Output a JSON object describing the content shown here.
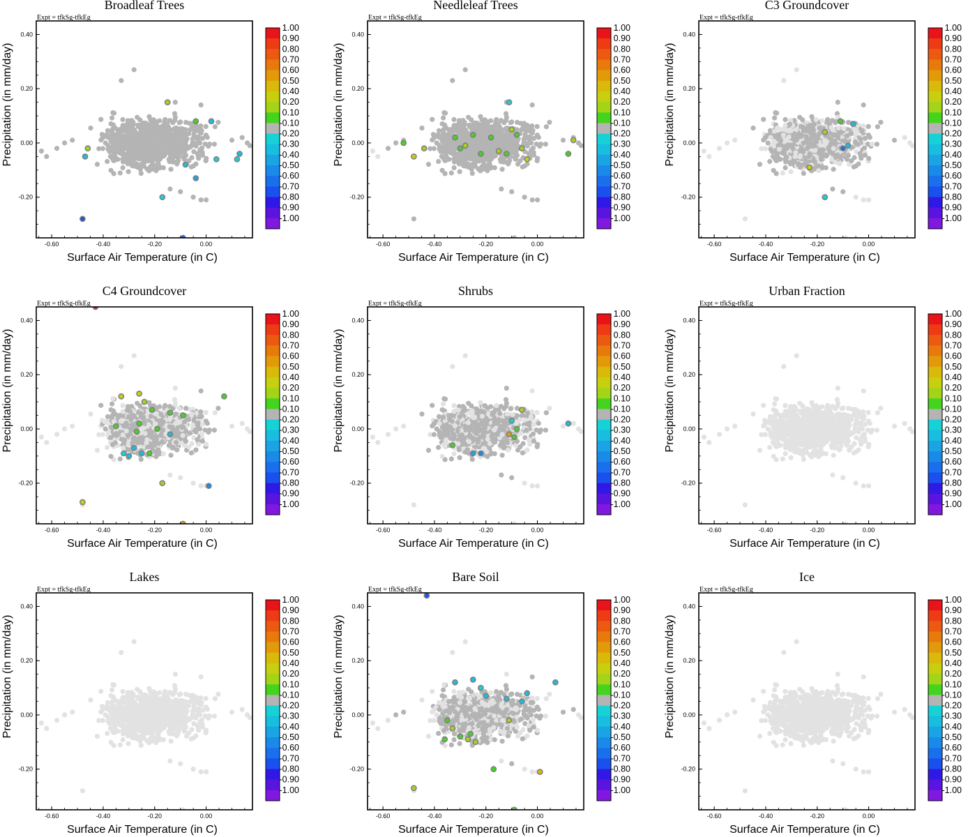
{
  "figure": {
    "expt_label": "Expt = tfkSg-tfkEg",
    "xlabel": "Surface Air Temperature (in C)",
    "ylabel": "Precipitation (in mm/day)"
  },
  "colorbar": {
    "labels": [
      "1.00",
      "0.90",
      "0.80",
      "0.70",
      "0.60",
      "0.50",
      "0.40",
      "0.20",
      "0.10",
      "-0.10",
      "-0.20",
      "-0.30",
      "-0.40",
      "-0.50",
      "-0.60",
      "-0.70",
      "-0.80",
      "-0.90",
      "-1.00"
    ],
    "colors": [
      "#e8141a",
      "#ee3b14",
      "#ec5a12",
      "#e87a0c",
      "#e39a0a",
      "#d9b90a",
      "#c8cf0e",
      "#a4d418",
      "#44d41e",
      "#b4b4b4",
      "#16d2d6",
      "#18bde0",
      "#1aa4e4",
      "#1a8ae8",
      "#1a70ec",
      "#1a50ee",
      "#3018e6",
      "#5a14e0",
      "#8018e0"
    ]
  },
  "chart_data": [
    {
      "type": "scatter",
      "title": "Broadleaf Trees",
      "xlabel": "Surface Air Temperature (in C)",
      "ylabel": "Precipitation (in mm/day)",
      "xlim": [
        -0.66,
        0.18
      ],
      "ylim": [
        -0.35,
        0.45
      ],
      "xticks": [
        "-0.60",
        "-0.40",
        "-0.20",
        "0.00"
      ],
      "yticks": [
        "0.40",
        "0.20",
        "0.00",
        "-0.20"
      ],
      "background_shade": "#b4b4b4",
      "background_extent": [
        -0.66,
        0.18
      ],
      "highlighted_points": [
        {
          "x": -0.47,
          "y": -0.05,
          "v": -0.3
        },
        {
          "x": -0.46,
          "y": -0.02,
          "v": 0.2
        },
        {
          "x": -0.48,
          "y": -0.28,
          "v": -0.7
        },
        {
          "x": -0.15,
          "y": 0.15,
          "v": 0.2
        },
        {
          "x": -0.04,
          "y": 0.08,
          "v": 0.1
        },
        {
          "x": 0.02,
          "y": 0.08,
          "v": -0.3
        },
        {
          "x": -0.17,
          "y": -0.2,
          "v": -0.2
        },
        {
          "x": -0.08,
          "y": -0.08,
          "v": -0.3
        },
        {
          "x": -0.04,
          "y": -0.13,
          "v": -0.4
        },
        {
          "x": 0.04,
          "y": -0.06,
          "v": -0.2
        },
        {
          "x": 0.13,
          "y": -0.04,
          "v": -0.3
        },
        {
          "x": 0.12,
          "y": -0.06,
          "v": -0.2
        },
        {
          "x": -0.09,
          "y": -0.35,
          "v": -0.7
        }
      ]
    },
    {
      "type": "scatter",
      "title": "Needleleaf Trees",
      "xlabel": "Surface Air Temperature (in C)",
      "ylabel": "Precipitation (in mm/day)",
      "xlim": [
        -0.66,
        0.18
      ],
      "ylim": [
        -0.35,
        0.45
      ],
      "xticks": [
        "-0.60",
        "-0.40",
        "-0.20",
        "0.00"
      ],
      "yticks": [
        "0.40",
        "0.20",
        "0.00",
        "-0.20"
      ],
      "background_shade": "#b4b4b4",
      "background_extent": [
        -0.6,
        0.18
      ],
      "highlighted_points": [
        {
          "x": -0.52,
          "y": 0.0,
          "v": 0.1
        },
        {
          "x": -0.48,
          "y": -0.05,
          "v": 0.4
        },
        {
          "x": -0.44,
          "y": -0.02,
          "v": 0.3
        },
        {
          "x": -0.32,
          "y": 0.02,
          "v": 0.1
        },
        {
          "x": -0.28,
          "y": -0.01,
          "v": 0.2
        },
        {
          "x": -0.25,
          "y": 0.03,
          "v": 0.1
        },
        {
          "x": -0.22,
          "y": -0.04,
          "v": 0.1
        },
        {
          "x": -0.18,
          "y": 0.02,
          "v": 0.1
        },
        {
          "x": -0.15,
          "y": -0.03,
          "v": 0.2
        },
        {
          "x": -0.12,
          "y": -0.04,
          "v": 0.1
        },
        {
          "x": -0.1,
          "y": 0.05,
          "v": 0.3
        },
        {
          "x": -0.08,
          "y": 0.03,
          "v": 0.1
        },
        {
          "x": -0.06,
          "y": -0.02,
          "v": 0.2
        },
        {
          "x": -0.04,
          "y": -0.06,
          "v": 0.4
        },
        {
          "x": 0.12,
          "y": -0.04,
          "v": 0.1
        },
        {
          "x": 0.14,
          "y": 0.01,
          "v": 0.2
        },
        {
          "x": -0.11,
          "y": 0.15,
          "v": -0.2
        },
        {
          "x": -0.3,
          "y": -0.02,
          "v": 0.1
        }
      ]
    },
    {
      "type": "scatter",
      "title": "C3 Groundcover",
      "xlabel": "Surface Air Temperature (in C)",
      "ylabel": "Precipitation (in mm/day)",
      "xlim": [
        -0.66,
        0.18
      ],
      "ylim": [
        -0.35,
        0.45
      ],
      "xticks": [
        "-0.60",
        "-0.40",
        "-0.20",
        "0.00"
      ],
      "yticks": [
        "0.40",
        "0.20",
        "0.00",
        "-0.20"
      ],
      "background_shade": "#b4b4b4",
      "background_extent": [
        -0.5,
        0.1
      ],
      "highlighted_points": [
        {
          "x": -0.17,
          "y": 0.04,
          "v": 0.2
        },
        {
          "x": -0.11,
          "y": 0.08,
          "v": 0.1
        },
        {
          "x": -0.06,
          "y": 0.07,
          "v": -0.3
        },
        {
          "x": -0.08,
          "y": -0.01,
          "v": -0.3
        },
        {
          "x": -0.1,
          "y": -0.02,
          "v": -0.6
        },
        {
          "x": -0.23,
          "y": -0.09,
          "v": 0.4
        },
        {
          "x": -0.17,
          "y": -0.2,
          "v": -0.2
        }
      ]
    },
    {
      "type": "scatter",
      "title": "C4 Groundcover",
      "xlabel": "Surface Air Temperature (in C)",
      "ylabel": "Precipitation (in mm/day)",
      "xlim": [
        -0.66,
        0.18
      ],
      "ylim": [
        -0.35,
        0.45
      ],
      "xticks": [
        "-0.60",
        "-0.40",
        "-0.20",
        "0.00"
      ],
      "yticks": [
        "0.40",
        "0.20",
        "0.00",
        "-0.20"
      ],
      "background_shade": "#b4b4b4",
      "background_extent": [
        -0.42,
        0.06
      ],
      "highlighted_points": [
        {
          "x": -0.43,
          "y": 0.45,
          "v": 1.0
        },
        {
          "x": -0.33,
          "y": 0.12,
          "v": 0.4
        },
        {
          "x": -0.26,
          "y": 0.13,
          "v": 0.4
        },
        {
          "x": -0.24,
          "y": 0.1,
          "v": 0.3
        },
        {
          "x": -0.21,
          "y": 0.07,
          "v": 0.1
        },
        {
          "x": -0.35,
          "y": 0.01,
          "v": 0.1
        },
        {
          "x": -0.26,
          "y": 0.02,
          "v": 0.1
        },
        {
          "x": -0.14,
          "y": 0.06,
          "v": 0.1
        },
        {
          "x": -0.09,
          "y": 0.05,
          "v": 0.1
        },
        {
          "x": -0.14,
          "y": -0.02,
          "v": -0.3
        },
        {
          "x": -0.19,
          "y": 0.0,
          "v": 0.1
        },
        {
          "x": -0.27,
          "y": -0.01,
          "v": 0.1
        },
        {
          "x": -0.32,
          "y": -0.09,
          "v": -0.2
        },
        {
          "x": -0.28,
          "y": -0.07,
          "v": -0.3
        },
        {
          "x": -0.25,
          "y": -0.09,
          "v": -0.3
        },
        {
          "x": -0.22,
          "y": -0.09,
          "v": 0.1
        },
        {
          "x": -0.3,
          "y": -0.1,
          "v": -0.3
        },
        {
          "x": -0.17,
          "y": -0.2,
          "v": 0.2
        },
        {
          "x": 0.01,
          "y": -0.21,
          "v": -0.5
        },
        {
          "x": 0.07,
          "y": 0.12,
          "v": 0.1
        },
        {
          "x": -0.48,
          "y": -0.27,
          "v": 0.4
        },
        {
          "x": -0.09,
          "y": -0.35,
          "v": 0.6
        }
      ]
    },
    {
      "type": "scatter",
      "title": "Shrubs",
      "xlabel": "Surface Air Temperature (in C)",
      "ylabel": "Precipitation (in mm/day)",
      "xlim": [
        -0.66,
        0.18
      ],
      "ylim": [
        -0.35,
        0.45
      ],
      "xticks": [
        "-0.60",
        "-0.40",
        "-0.20",
        "0.00"
      ],
      "yticks": [
        "0.40",
        "0.20",
        "0.00",
        "-0.20"
      ],
      "background_shade": "#b4b4b4",
      "background_extent": [
        -0.52,
        0.04
      ],
      "highlighted_points": [
        {
          "x": -0.33,
          "y": -0.06,
          "v": 0.1
        },
        {
          "x": -0.25,
          "y": -0.09,
          "v": -0.4
        },
        {
          "x": -0.22,
          "y": -0.09,
          "v": -0.5
        },
        {
          "x": -0.1,
          "y": 0.03,
          "v": -0.2
        },
        {
          "x": -0.06,
          "y": 0.07,
          "v": 0.3
        },
        {
          "x": -0.08,
          "y": 0.0,
          "v": 0.1
        },
        {
          "x": -0.11,
          "y": -0.02,
          "v": 0.6
        },
        {
          "x": -0.09,
          "y": -0.03,
          "v": 0.1
        },
        {
          "x": 0.12,
          "y": 0.02,
          "v": -0.3
        }
      ]
    },
    {
      "type": "scatter",
      "title": "Urban Fraction",
      "xlabel": "Surface Air Temperature (in C)",
      "ylabel": "Precipitation (in mm/day)",
      "xlim": [
        -0.66,
        0.18
      ],
      "ylim": [
        -0.35,
        0.45
      ],
      "xticks": [
        "-0.60",
        "-0.40",
        "-0.20",
        "0.00"
      ],
      "yticks": [
        "0.40",
        "0.20",
        "0.00",
        "-0.20"
      ],
      "background_shade": "#b4b4b4",
      "background_extent": [
        0,
        0
      ],
      "highlighted_points": []
    },
    {
      "type": "scatter",
      "title": "Lakes",
      "xlabel": "Surface Air Temperature (in C)",
      "ylabel": "Precipitation (in mm/day)",
      "xlim": [
        -0.66,
        0.18
      ],
      "ylim": [
        -0.35,
        0.45
      ],
      "xticks": [
        "-0.60",
        "-0.40",
        "-0.20",
        "0.00"
      ],
      "yticks": [
        "0.40",
        "0.20",
        "0.00",
        "-0.20"
      ],
      "background_shade": "#b4b4b4",
      "background_extent": [
        0,
        0
      ],
      "highlighted_points": []
    },
    {
      "type": "scatter",
      "title": "Bare Soil",
      "xlabel": "Surface Air Temperature (in C)",
      "ylabel": "Precipitation (in mm/day)",
      "xlim": [
        -0.66,
        0.18
      ],
      "ylim": [
        -0.35,
        0.45
      ],
      "xticks": [
        "-0.60",
        "-0.40",
        "-0.20",
        "0.00"
      ],
      "yticks": [
        "0.40",
        "0.20",
        "0.00",
        "-0.20"
      ],
      "background_shade": "#b4b4b4",
      "background_extent": [
        -0.58,
        0.16
      ],
      "highlighted_points": [
        {
          "x": -0.43,
          "y": 0.44,
          "v": -0.7
        },
        {
          "x": -0.32,
          "y": 0.12,
          "v": -0.3
        },
        {
          "x": -0.25,
          "y": 0.13,
          "v": -0.3
        },
        {
          "x": -0.22,
          "y": 0.1,
          "v": -0.2
        },
        {
          "x": -0.2,
          "y": 0.07,
          "v": -0.3
        },
        {
          "x": -0.12,
          "y": 0.06,
          "v": -0.3
        },
        {
          "x": -0.04,
          "y": 0.08,
          "v": -0.3
        },
        {
          "x": -0.06,
          "y": 0.05,
          "v": -0.3
        },
        {
          "x": 0.07,
          "y": 0.12,
          "v": -0.3
        },
        {
          "x": -0.35,
          "y": -0.02,
          "v": 0.1
        },
        {
          "x": -0.33,
          "y": -0.05,
          "v": 0.2
        },
        {
          "x": -0.3,
          "y": -0.08,
          "v": 0.1
        },
        {
          "x": -0.27,
          "y": -0.09,
          "v": 0.2
        },
        {
          "x": -0.24,
          "y": -0.1,
          "v": 0.3
        },
        {
          "x": -0.36,
          "y": -0.09,
          "v": 0.1
        },
        {
          "x": -0.26,
          "y": -0.07,
          "v": 0.1
        },
        {
          "x": -0.11,
          "y": -0.02,
          "v": 0.3
        },
        {
          "x": -0.17,
          "y": -0.2,
          "v": 0.1
        },
        {
          "x": 0.01,
          "y": -0.21,
          "v": 0.5
        },
        {
          "x": -0.48,
          "y": -0.27,
          "v": 0.3
        },
        {
          "x": -0.09,
          "y": -0.35,
          "v": 0.1
        }
      ]
    },
    {
      "type": "scatter",
      "title": "Ice",
      "xlabel": "Surface Air Temperature (in C)",
      "ylabel": "Precipitation (in mm/day)",
      "xlim": [
        -0.66,
        0.18
      ],
      "ylim": [
        -0.35,
        0.45
      ],
      "xticks": [
        "-0.60",
        "-0.40",
        "-0.20",
        "0.00"
      ],
      "yticks": [
        "0.40",
        "0.20",
        "0.00",
        "-0.20"
      ],
      "background_shade": "#b4b4b4",
      "background_extent": [
        0,
        0
      ],
      "highlighted_points": []
    }
  ]
}
